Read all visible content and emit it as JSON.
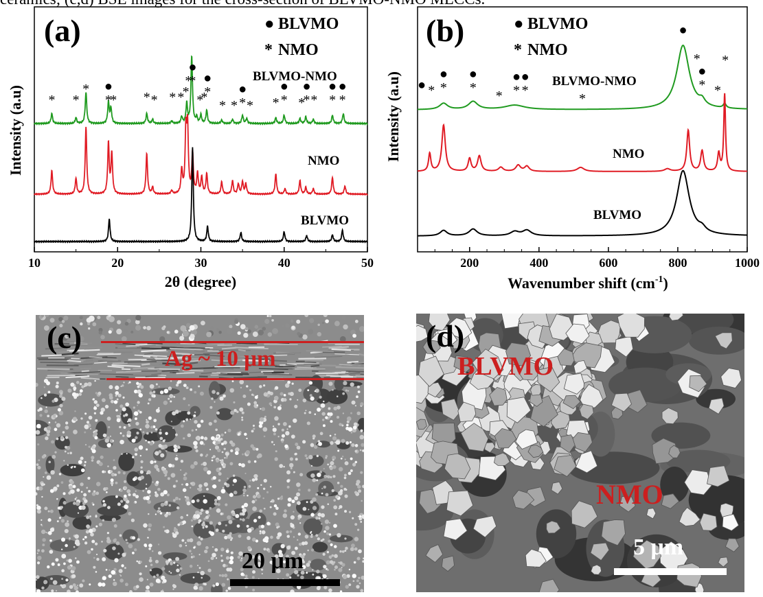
{
  "caption": "ceramics; (c,d) BSE images for the cross-section of BLVMO-NMO MLCCs.",
  "legend": [
    {
      "symbol": "●",
      "label": "BLVMO"
    },
    {
      "symbol": "*",
      "label": "NMO"
    }
  ],
  "colors": {
    "BLVMO": "#000000",
    "NMO": "#e01b24",
    "BLVMO-NMO": "#1f9a1f",
    "annotation_red": "#cc1f1f"
  },
  "chart_data": [
    {
      "panel": "(a)",
      "type": "line",
      "xlabel": "2θ (degree)",
      "ylabel": "Intensity (a.u)",
      "xlim": [
        10,
        50
      ],
      "xticks": [
        "10",
        "20",
        "30",
        "40",
        "50"
      ],
      "grid": false,
      "series": [
        {
          "name": "BLVMO-NMO",
          "peaks": [
            [
              12.1,
              0.12
            ],
            [
              15.0,
              0.07
            ],
            [
              16.2,
              0.38
            ],
            [
              18.9,
              0.25
            ],
            [
              19.2,
              0.18
            ],
            [
              23.5,
              0.12
            ],
            [
              24.2,
              0.05
            ],
            [
              26.5,
              0.03
            ],
            [
              27.7,
              0.08
            ],
            [
              28.3,
              0.24
            ],
            [
              28.9,
              0.82
            ],
            [
              29.5,
              0.07
            ],
            [
              30.0,
              0.1
            ],
            [
              30.7,
              0.16
            ],
            [
              32.5,
              0.04
            ],
            [
              33.8,
              0.05
            ],
            [
              35.0,
              0.1
            ],
            [
              35.5,
              0.06
            ],
            [
              39.0,
              0.07
            ],
            [
              40.0,
              0.1
            ],
            [
              41.9,
              0.06
            ],
            [
              42.6,
              0.08
            ],
            [
              43.5,
              0.05
            ],
            [
              45.8,
              0.1
            ],
            [
              47.1,
              0.12
            ]
          ]
        },
        {
          "name": "NMO",
          "peaks": [
            [
              12.1,
              0.35
            ],
            [
              15.0,
              0.23
            ],
            [
              16.2,
              1.0
            ],
            [
              18.9,
              0.75
            ],
            [
              19.3,
              0.6
            ],
            [
              23.5,
              0.6
            ],
            [
              24.2,
              0.1
            ],
            [
              26.5,
              0.05
            ],
            [
              27.7,
              0.35
            ],
            [
              28.2,
              0.9
            ],
            [
              28.4,
              0.95
            ],
            [
              29.0,
              0.6
            ],
            [
              29.6,
              0.3
            ],
            [
              30.1,
              0.25
            ],
            [
              30.7,
              0.3
            ],
            [
              32.5,
              0.18
            ],
            [
              33.8,
              0.2
            ],
            [
              34.5,
              0.15
            ],
            [
              35.0,
              0.18
            ],
            [
              35.4,
              0.15
            ],
            [
              39.0,
              0.3
            ],
            [
              40.1,
              0.08
            ],
            [
              41.9,
              0.2
            ],
            [
              42.6,
              0.1
            ],
            [
              43.5,
              0.08
            ],
            [
              45.8,
              0.25
            ],
            [
              47.3,
              0.12
            ]
          ]
        },
        {
          "name": "BLVMO",
          "peaks": [
            [
              19.0,
              0.3
            ],
            [
              29.0,
              1.25
            ],
            [
              30.8,
              0.2
            ],
            [
              34.8,
              0.12
            ],
            [
              40.0,
              0.13
            ],
            [
              42.7,
              0.08
            ],
            [
              45.8,
              0.09
            ],
            [
              47.0,
              0.15
            ]
          ]
        }
      ],
      "markers": [
        {
          "x": 12.1,
          "symbols": [
            "*"
          ]
        },
        {
          "x": 15.0,
          "symbols": [
            "*"
          ]
        },
        {
          "x": 16.2,
          "symbols": [
            "*"
          ]
        },
        {
          "x": 18.9,
          "symbols": [
            "●",
            "*"
          ]
        },
        {
          "x": 19.5,
          "symbols": [
            "*"
          ]
        },
        {
          "x": 23.5,
          "symbols": [
            "*"
          ]
        },
        {
          "x": 24.4,
          "symbols": [
            "*"
          ]
        },
        {
          "x": 26.6,
          "symbols": [
            "*"
          ]
        },
        {
          "x": 27.6,
          "symbols": [
            "*"
          ]
        },
        {
          "x": 28.2,
          "symbols": [
            "*"
          ]
        },
        {
          "x": 28.5,
          "symbols": [
            "*"
          ]
        },
        {
          "x": 29.0,
          "symbols": [
            "●",
            "*"
          ]
        },
        {
          "x": 29.9,
          "symbols": [
            "*"
          ]
        },
        {
          "x": 30.4,
          "symbols": [
            "*"
          ]
        },
        {
          "x": 30.8,
          "symbols": [
            "●",
            "*"
          ]
        },
        {
          "x": 32.6,
          "symbols": [
            "*"
          ]
        },
        {
          "x": 34.0,
          "symbols": [
            "*"
          ]
        },
        {
          "x": 35.0,
          "symbols": [
            "●",
            "*"
          ]
        },
        {
          "x": 35.9,
          "symbols": [
            "*"
          ]
        },
        {
          "x": 39.0,
          "symbols": [
            "*"
          ]
        },
        {
          "x": 40.0,
          "symbols": [
            "●",
            "*"
          ]
        },
        {
          "x": 42.1,
          "symbols": [
            "*"
          ]
        },
        {
          "x": 42.7,
          "symbols": [
            "●",
            "*"
          ]
        },
        {
          "x": 43.6,
          "symbols": [
            "*"
          ]
        },
        {
          "x": 45.8,
          "symbols": [
            "●",
            "*"
          ]
        },
        {
          "x": 47.0,
          "symbols": [
            "●",
            "*"
          ]
        }
      ]
    },
    {
      "panel": "(b)",
      "type": "line",
      "xlabel": "Wavenumber shift (cm",
      "xlabel_superscript": "-1",
      "xlabel_suffix": ")",
      "ylabel": "Intensity (a.u)",
      "xlim": [
        50,
        1000
      ],
      "xticks": [
        "200",
        "400",
        "600",
        "800",
        "1000"
      ],
      "grid": false,
      "series": [
        {
          "name": "BLVMO-NMO",
          "peaks": [
            [
              125,
              0.07,
              14
            ],
            [
              210,
              0.09,
              16
            ],
            [
              330,
              0.05,
              35
            ],
            [
              815,
              0.72,
              22
            ],
            [
              870,
              0.06,
              10
            ],
            [
              935,
              0.05,
              5
            ]
          ]
        },
        {
          "name": "NMO",
          "peaks": [
            [
              85,
              0.35,
              4
            ],
            [
              125,
              0.9,
              6
            ],
            [
              200,
              0.25,
              5
            ],
            [
              228,
              0.3,
              6
            ],
            [
              290,
              0.08,
              8
            ],
            [
              340,
              0.12,
              8
            ],
            [
              365,
              0.1,
              8
            ],
            [
              520,
              0.08,
              12
            ],
            [
              770,
              0.05,
              10
            ],
            [
              830,
              0.8,
              5
            ],
            [
              870,
              0.4,
              5
            ],
            [
              918,
              0.35,
              4
            ],
            [
              935,
              1.5,
              3
            ]
          ]
        },
        {
          "name": "BLVMO",
          "peaks": [
            [
              125,
              0.08,
              12
            ],
            [
              210,
              0.1,
              14
            ],
            [
              330,
              0.06,
              15
            ],
            [
              365,
              0.08,
              15
            ],
            [
              815,
              0.95,
              22
            ],
            [
              870,
              0.06,
              12
            ]
          ]
        }
      ],
      "markers": [
        {
          "x": 62,
          "symbols": [
            "●"
          ]
        },
        {
          "x": 90,
          "symbols": [
            "*"
          ]
        },
        {
          "x": 125,
          "symbols": [
            "●",
            "*"
          ]
        },
        {
          "x": 210,
          "symbols": [
            "●",
            "*"
          ]
        },
        {
          "x": 285,
          "symbols": [
            "*"
          ]
        },
        {
          "x": 335,
          "symbols": [
            "●",
            "*"
          ]
        },
        {
          "x": 360,
          "symbols": [
            "●",
            "*"
          ]
        },
        {
          "x": 525,
          "symbols": [
            "*"
          ]
        },
        {
          "x": 815,
          "symbols": [
            "●"
          ]
        },
        {
          "x": 855,
          "symbols": [
            "*"
          ]
        },
        {
          "x": 870,
          "symbols": [
            "●",
            "*"
          ]
        },
        {
          "x": 915,
          "symbols": [
            "*"
          ]
        },
        {
          "x": 937,
          "symbols": [
            "*"
          ]
        }
      ]
    }
  ],
  "micrographs": {
    "c": {
      "panel": "(c)",
      "layer_label": "Ag ~ 10 μm",
      "scale_label": "20 μm"
    },
    "d": {
      "panel": "(d)",
      "phase_labels": [
        "BLVMO",
        "NMO"
      ],
      "scale_label": "5 μm"
    }
  }
}
